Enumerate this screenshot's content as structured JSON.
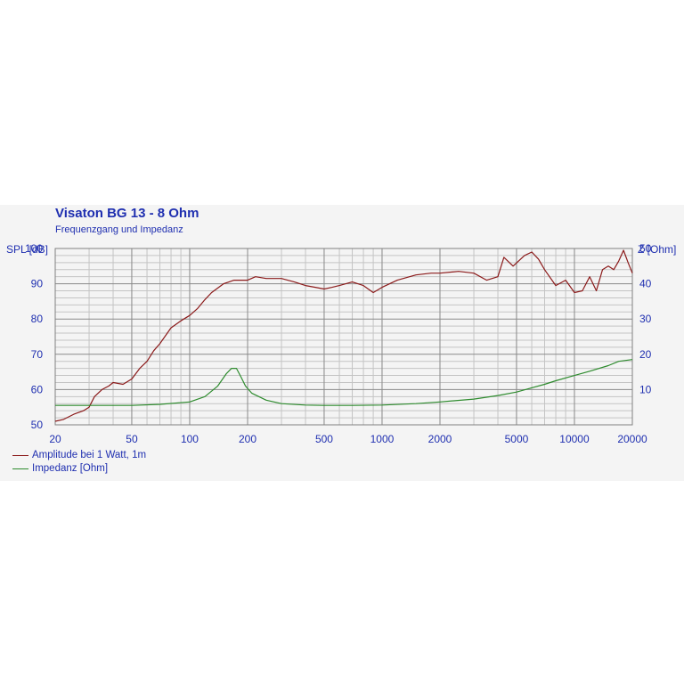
{
  "title": "Visaton BG 13 - 8 Ohm",
  "subtitle": "Frequenzgang und Impedanz",
  "colors": {
    "text": "#1f2fb0",
    "amplitude": "#8b1a1a",
    "impedance": "#2e8b2e"
  },
  "chart_data": {
    "type": "line",
    "x_scale": "log",
    "grid": true,
    "xlim": [
      20,
      20000
    ],
    "ylim_left": [
      50,
      100
    ],
    "ylim_right": [
      0,
      50
    ],
    "ylabel_left": "SPL [dB]",
    "ylabel_right": "Z [Ohm]",
    "x_ticks": [
      20,
      50,
      100,
      200,
      500,
      1000,
      2000,
      5000,
      10000,
      20000
    ],
    "y_ticks_left": [
      50,
      60,
      70,
      80,
      90,
      100
    ],
    "y_ticks_right": [
      10,
      20,
      30,
      40,
      50
    ],
    "legend_position": "bottom-left",
    "series": [
      {
        "name": "Amplitude bei 1 Watt, 1m",
        "axis": "left",
        "x": [
          20,
          22,
          25,
          28,
          30,
          32,
          35,
          38,
          40,
          45,
          50,
          55,
          60,
          65,
          70,
          80,
          90,
          100,
          110,
          120,
          130,
          150,
          170,
          200,
          220,
          250,
          300,
          350,
          400,
          450,
          500,
          550,
          600,
          700,
          800,
          900,
          1000,
          1200,
          1500,
          1800,
          2000,
          2500,
          3000,
          3500,
          4000,
          4300,
          4800,
          5500,
          6000,
          6500,
          7000,
          8000,
          9000,
          10000,
          11000,
          12000,
          13000,
          14000,
          15000,
          16000,
          17000,
          18000,
          19000,
          20000
        ],
        "values": [
          51,
          51.5,
          53,
          54,
          55,
          58,
          60,
          61,
          62,
          61.5,
          63,
          66,
          68,
          71,
          73,
          77.5,
          79.5,
          81,
          83,
          85.5,
          87.5,
          90,
          91,
          91,
          92,
          91.5,
          91.5,
          90.5,
          89.5,
          89,
          88.5,
          89,
          89.5,
          90.5,
          89.5,
          87.5,
          89,
          91,
          92.5,
          93,
          93,
          93.5,
          93,
          91,
          92,
          97.5,
          95,
          98,
          99,
          97,
          94,
          89.5,
          91,
          87.5,
          88,
          92,
          88,
          94,
          95,
          94,
          96.5,
          99.5,
          96,
          93
        ]
      },
      {
        "name": "Impedanz [Ohm]",
        "axis": "right",
        "x": [
          20,
          30,
          50,
          70,
          100,
          120,
          140,
          155,
          165,
          175,
          185,
          195,
          210,
          250,
          300,
          400,
          500,
          700,
          1000,
          1500,
          2000,
          3000,
          4000,
          5000,
          6000,
          7000,
          8000,
          10000,
          12000,
          15000,
          17000,
          20000
        ],
        "values": [
          5.5,
          5.5,
          5.5,
          5.8,
          6.5,
          8,
          11,
          14.5,
          16,
          16,
          13.5,
          11,
          9,
          7,
          6,
          5.6,
          5.5,
          5.5,
          5.6,
          6,
          6.5,
          7.3,
          8.3,
          9.3,
          10.5,
          11.5,
          12.5,
          14,
          15.2,
          16.8,
          18,
          18.5
        ]
      }
    ]
  }
}
